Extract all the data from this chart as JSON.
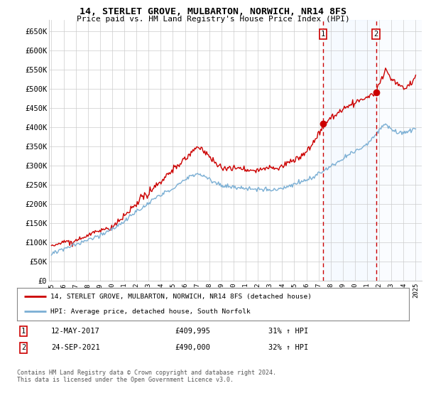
{
  "title": "14, STERLET GROVE, MULBARTON, NORWICH, NR14 8FS",
  "subtitle": "Price paid vs. HM Land Registry's House Price Index (HPI)",
  "ylabel_ticks": [
    "£0",
    "£50K",
    "£100K",
    "£150K",
    "£200K",
    "£250K",
    "£300K",
    "£350K",
    "£400K",
    "£450K",
    "£500K",
    "£550K",
    "£600K",
    "£650K"
  ],
  "ytick_values": [
    0,
    50000,
    100000,
    150000,
    200000,
    250000,
    300000,
    350000,
    400000,
    450000,
    500000,
    550000,
    600000,
    650000
  ],
  "ylim": [
    0,
    680000
  ],
  "xlim_start": 1994.8,
  "xlim_end": 2025.5,
  "sale1_x": 2017.36,
  "sale1_y": 409995,
  "sale1_label": "1",
  "sale1_date": "12-MAY-2017",
  "sale1_price": "£409,995",
  "sale1_hpi": "31% ↑ HPI",
  "sale2_x": 2021.73,
  "sale2_y": 490000,
  "sale2_label": "2",
  "sale2_date": "24-SEP-2021",
  "sale2_price": "£490,000",
  "sale2_hpi": "32% ↑ HPI",
  "red_color": "#cc0000",
  "blue_color": "#7bafd4",
  "shade_color": "#ddeeff",
  "background_color": "#ffffff",
  "grid_color": "#cccccc",
  "legend_line1": "14, STERLET GROVE, MULBARTON, NORWICH, NR14 8FS (detached house)",
  "legend_line2": "HPI: Average price, detached house, South Norfolk",
  "copyright_text": "Contains HM Land Registry data © Crown copyright and database right 2024.\nThis data is licensed under the Open Government Licence v3.0.",
  "xtick_years": [
    1995,
    1996,
    1997,
    1998,
    1999,
    2000,
    2001,
    2002,
    2003,
    2004,
    2005,
    2006,
    2007,
    2008,
    2009,
    2010,
    2011,
    2012,
    2013,
    2014,
    2015,
    2016,
    2017,
    2018,
    2019,
    2020,
    2021,
    2022,
    2023,
    2024,
    2025
  ]
}
